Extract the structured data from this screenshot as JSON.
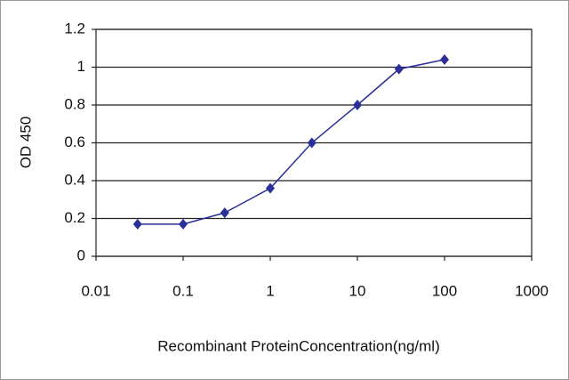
{
  "chart_data": {
    "type": "line",
    "xlabel": "Recombinant ProteinConcentration(ng/ml)",
    "ylabel": "OD 450",
    "x": [
      0.03,
      0.1,
      0.3,
      1,
      3,
      10,
      30,
      100
    ],
    "series": [
      {
        "color": "#2b2f9a",
        "values": [
          0.17,
          0.17,
          0.23,
          0.36,
          0.6,
          0.8,
          0.99,
          1.04
        ]
      }
    ],
    "xscale": "log",
    "xlim": [
      0.01,
      1000
    ],
    "xticks": [
      0.01,
      0.1,
      1,
      10,
      100,
      1000
    ],
    "ylim": [
      0,
      1.2
    ],
    "yticks": [
      0,
      0.2,
      0.4,
      0.6,
      0.8,
      1,
      1.2
    ],
    "grid": true
  }
}
